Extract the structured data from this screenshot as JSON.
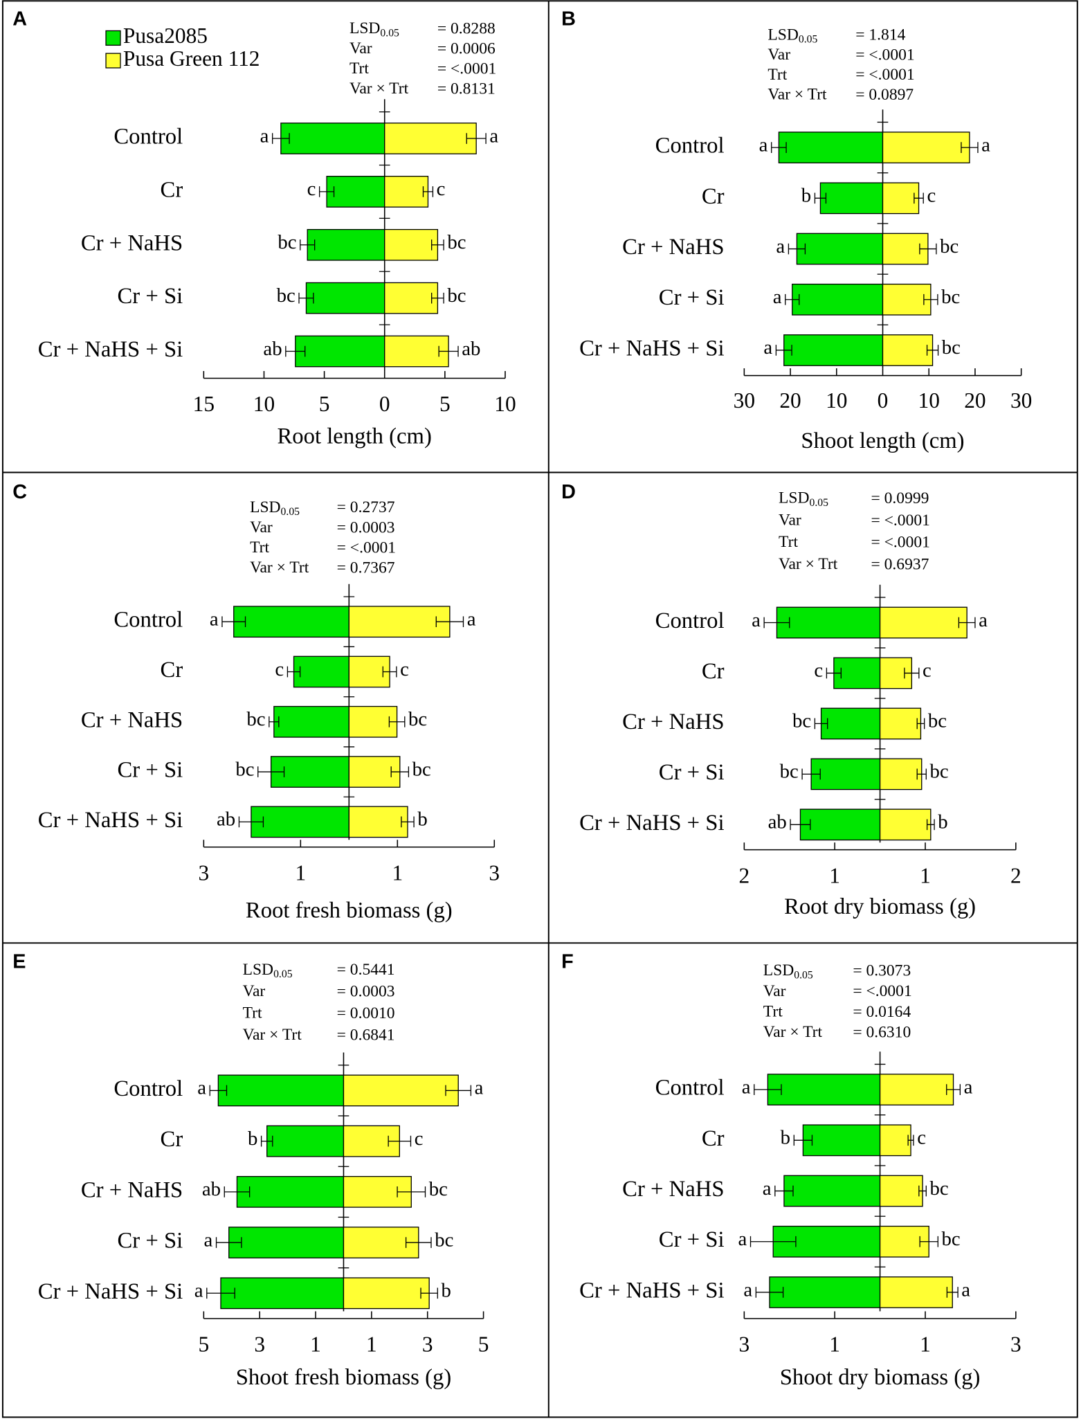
{
  "chart_data": [
    {
      "type": "bar",
      "panel": "A",
      "legend": true,
      "categories": [
        "Control",
        "Cr",
        "Cr + NaHS",
        "Cr + Si",
        "Cr + NaHS + Si"
      ],
      "series": [
        {
          "name": "Pusa2085",
          "color": "#00e600",
          "values": [
            -8.6,
            -4.8,
            -6.4,
            -6.5,
            -7.4
          ],
          "errors": [
            0.7,
            0.6,
            0.6,
            0.6,
            0.8
          ],
          "letters": [
            "a",
            "c",
            "bc",
            "bc",
            "ab"
          ]
        },
        {
          "name": "Pusa Green 112",
          "color": "#ffff33",
          "values": [
            7.6,
            3.6,
            4.4,
            4.4,
            5.3
          ],
          "errors": [
            0.8,
            0.4,
            0.5,
            0.5,
            0.8
          ],
          "letters": [
            "a",
            "c",
            "bc",
            "bc",
            "ab"
          ]
        }
      ],
      "xlabel": "Root length (cm)",
      "xlim": [
        -15,
        10
      ],
      "xticks": [
        {
          "value": -15,
          "label": "15"
        },
        {
          "value": -10,
          "label": "10"
        },
        {
          "value": -5,
          "label": "5"
        },
        0,
        5,
        10
      ],
      "stats": [
        {
          "label": "LSD",
          "sub": "0.05",
          "value": "= 0.8288"
        },
        {
          "label": "Var",
          "value": "= 0.0006"
        },
        {
          "label": "Trt",
          "value": "= <.0001"
        },
        {
          "label": "Var × Trt",
          "value": "= 0.8131"
        }
      ]
    },
    {
      "type": "bar",
      "panel": "B",
      "categories": [
        "Control",
        "Cr",
        "Cr + NaHS",
        "Cr + Si",
        "Cr + NaHS + Si"
      ],
      "series": [
        {
          "color": "#00e600",
          "values": [
            -22.5,
            -13.5,
            -18.6,
            -19.6,
            -21.4
          ],
          "errors": [
            1.6,
            1.2,
            1.8,
            1.5,
            1.7
          ],
          "letters": [
            "a",
            "b",
            "a",
            "a",
            "a"
          ]
        },
        {
          "color": "#ffff33",
          "values": [
            18.8,
            7.8,
            9.8,
            10.4,
            10.8
          ],
          "errors": [
            1.8,
            1.0,
            1.8,
            1.5,
            1.2
          ],
          "letters": [
            "a",
            "c",
            "bc",
            "bc",
            "bc"
          ]
        }
      ],
      "xlabel": "Shoot length (cm)",
      "xlim": [
        -30,
        30
      ],
      "xticks": [
        {
          "value": -30,
          "label": "30"
        },
        {
          "value": -20,
          "label": "20"
        },
        {
          "value": -10,
          "label": "10"
        },
        0,
        10,
        20,
        30
      ],
      "stats": [
        {
          "label": "LSD",
          "sub": "0.05",
          "value": "= 1.814"
        },
        {
          "label": "Var",
          "value": "= <.0001"
        },
        {
          "label": "Trt",
          "value": "= <.0001"
        },
        {
          "label": "Var × Trt",
          "value": "= 0.0897"
        }
      ]
    },
    {
      "type": "bar",
      "panel": "C",
      "categories": [
        "Control",
        "Cr",
        "Cr + NaHS",
        "Cr + Si",
        "Cr + NaHS + Si"
      ],
      "series": [
        {
          "color": "#00e600",
          "values": [
            -2.38,
            -1.14,
            -1.55,
            -1.61,
            -2.02
          ],
          "errors": [
            0.24,
            0.13,
            0.1,
            0.27,
            0.25
          ],
          "letters": [
            "a",
            "c",
            "bc",
            "bc",
            "ab"
          ]
        },
        {
          "color": "#ffff33",
          "values": [
            2.08,
            0.84,
            0.99,
            1.05,
            1.21
          ],
          "errors": [
            0.28,
            0.14,
            0.16,
            0.18,
            0.13
          ],
          "letters": [
            "a",
            "c",
            "bc",
            "bc",
            "b"
          ]
        }
      ],
      "xlabel": "Root fresh biomass (g)",
      "xlim": [
        -3,
        3
      ],
      "xticks": [
        {
          "value": -3,
          "label": "3"
        },
        {
          "value": -1,
          "label": "1"
        },
        1,
        3
      ],
      "stats": [
        {
          "label": "LSD",
          "sub": "0.05",
          "value": "= 0.2737"
        },
        {
          "label": "Var",
          "value": "= 0.0003"
        },
        {
          "label": "Trt",
          "value": "= <.0001"
        },
        {
          "label": "Var × Trt",
          "value": "= 0.7367"
        }
      ]
    },
    {
      "type": "bar",
      "panel": "D",
      "categories": [
        "Control",
        "Cr",
        "Cr + NaHS",
        "Cr + Si",
        "Cr + NaHS + Si"
      ],
      "series": [
        {
          "color": "#00e600",
          "values": [
            -1.14,
            -0.51,
            -0.65,
            -0.76,
            -0.88
          ],
          "errors": [
            0.14,
            0.08,
            0.07,
            0.1,
            0.11
          ],
          "letters": [
            "a",
            "c",
            "bc",
            "bc",
            "ab"
          ]
        },
        {
          "color": "#ffff33",
          "values": [
            0.96,
            0.35,
            0.45,
            0.46,
            0.56
          ],
          "errors": [
            0.09,
            0.08,
            0.04,
            0.05,
            0.04
          ],
          "letters": [
            "a",
            "c",
            "bc",
            "bc",
            "b"
          ]
        }
      ],
      "xlabel": "Root dry biomass (g)",
      "xlim": [
        -1.5,
        1.5
      ],
      "xticks": [
        {
          "value": -1.5,
          "label": "2"
        },
        {
          "value": -0.5,
          "label": "1"
        },
        {
          "value": 0.5,
          "label": "1"
        },
        {
          "value": 1.5,
          "label": "2"
        }
      ],
      "stats": [
        {
          "label": "LSD",
          "sub": "0.05",
          "value": "= 0.0999"
        },
        {
          "label": "Var",
          "value": "= <.0001"
        },
        {
          "label": "Trt",
          "value": "= <.0001"
        },
        {
          "label": "Var × Trt",
          "value": "= 0.6937"
        }
      ]
    },
    {
      "type": "bar",
      "panel": "E",
      "categories": [
        "Control",
        "Cr",
        "Cr + NaHS",
        "Cr + Si",
        "Cr + NaHS + Si"
      ],
      "series": [
        {
          "color": "#00e600",
          "values": [
            -4.48,
            -2.74,
            -3.81,
            -4.1,
            -4.39
          ],
          "errors": [
            0.3,
            0.2,
            0.45,
            0.45,
            0.5
          ],
          "letters": [
            "a",
            "b",
            "ab",
            "a",
            "a"
          ]
        },
        {
          "color": "#ffff33",
          "values": [
            4.1,
            2.0,
            2.42,
            2.68,
            3.06
          ],
          "errors": [
            0.45,
            0.4,
            0.5,
            0.45,
            0.3
          ],
          "letters": [
            "a",
            "c",
            "bc",
            "bc",
            "b"
          ]
        }
      ],
      "xlabel": "Shoot fresh biomass (g)",
      "xlim": [
        -5,
        5
      ],
      "xticks": [
        {
          "value": -5,
          "label": "5"
        },
        {
          "value": -3,
          "label": "3"
        },
        {
          "value": -1,
          "label": "1"
        },
        1,
        3,
        5
      ],
      "stats": [
        {
          "label": "LSD",
          "sub": "0.05",
          "value": "= 0.5441"
        },
        {
          "label": "Var",
          "value": "= 0.0003"
        },
        {
          "label": "Trt",
          "value": "= 0.0010"
        },
        {
          "label": "Var × Trt",
          "value": "= 0.6841"
        }
      ]
    },
    {
      "type": "bar",
      "panel": "F",
      "categories": [
        "Control",
        "Cr",
        "Cr + NaHS",
        "Cr + Si",
        "Cr + NaHS + Si"
      ],
      "series": [
        {
          "color": "#00e600",
          "values": [
            -2.48,
            -1.7,
            -2.12,
            -2.36,
            -2.44
          ],
          "errors": [
            0.3,
            0.2,
            0.2,
            0.5,
            0.3
          ],
          "letters": [
            "a",
            "b",
            "a",
            "a",
            "a"
          ]
        },
        {
          "color": "#ffff33",
          "values": [
            1.62,
            0.68,
            0.94,
            1.08,
            1.6
          ],
          "errors": [
            0.15,
            0.06,
            0.08,
            0.2,
            0.12
          ],
          "letters": [
            "a",
            "c",
            "bc",
            "bc",
            "a"
          ]
        }
      ],
      "xlabel": "Shoot dry biomass (g)",
      "xlim": [
        -3,
        3
      ],
      "xticks": [
        {
          "value": -3,
          "label": "3"
        },
        {
          "value": -1,
          "label": "1"
        },
        1,
        3
      ],
      "stats": [
        {
          "label": "LSD",
          "sub": "0.05",
          "value": "= 0.3073"
        },
        {
          "label": "Var",
          "value": "= <.0001"
        },
        {
          "label": "Trt",
          "value": "= 0.0164"
        },
        {
          "label": "Var × Trt",
          "value": "= 0.6310"
        }
      ]
    }
  ]
}
